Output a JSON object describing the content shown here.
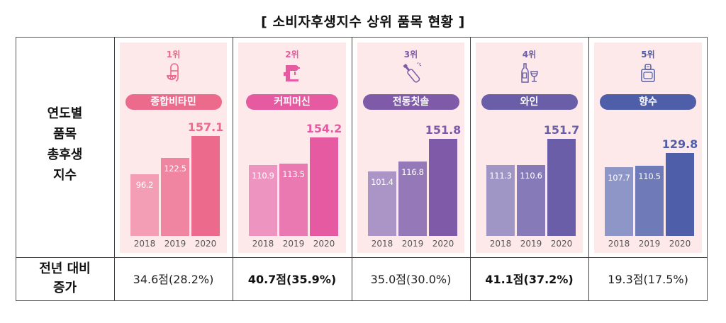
{
  "title": "[ 소비자후생지수 상위 품목 현황 ]",
  "row_labels": {
    "index_lines": [
      "연도별",
      "품목",
      "총후생",
      "지수"
    ],
    "increase_lines": [
      "전년 대비",
      "증가"
    ]
  },
  "chart_data": {
    "type": "bar",
    "title": "[ 소비자후생지수 상위 품목 현황 ]",
    "ylabel": "연도별 품목 총후생 지수",
    "categories": [
      "2018",
      "2019",
      "2020"
    ],
    "series": [
      {
        "rank": "1위",
        "name": "종합비타민",
        "icon": "vitamin-capsule-icon",
        "color": "#ec6a8c",
        "values": [
          96.2,
          122.5,
          157.1
        ],
        "labels": [
          "96.2",
          "122.5",
          "157.1"
        ],
        "increase": "34.6점(28.2%)",
        "bold": false
      },
      {
        "rank": "2위",
        "name": "커피머신",
        "icon": "coffee-machine-icon",
        "color": "#e55aa0",
        "values": [
          110.9,
          113.5,
          154.2
        ],
        "labels": [
          "110.9",
          "113.5",
          "154.2"
        ],
        "increase": "40.7점(35.9%)",
        "bold": true
      },
      {
        "rank": "3위",
        "name": "전동칫솔",
        "icon": "electric-toothbrush-icon",
        "color": "#7e5aa8",
        "values": [
          101.4,
          116.8,
          151.8
        ],
        "labels": [
          "101.4",
          "116.8",
          "151.8"
        ],
        "increase": "35.0점(30.0%)",
        "bold": false
      },
      {
        "rank": "4위",
        "name": "와인",
        "icon": "wine-bottle-glass-icon",
        "color": "#6b5ea8",
        "values": [
          111.3,
          110.6,
          151.7
        ],
        "labels": [
          "111.3",
          "110.6",
          "151.7"
        ],
        "increase": "41.1점(37.2%)",
        "bold": true
      },
      {
        "rank": "5위",
        "name": "향수",
        "icon": "perfume-bottle-icon",
        "color": "#4f5ea8",
        "values": [
          107.7,
          110.5,
          129.8
        ],
        "labels": [
          "107.7",
          "110.5",
          "129.8"
        ],
        "increase": "19.3점(17.5%)",
        "bold": false
      }
    ]
  }
}
